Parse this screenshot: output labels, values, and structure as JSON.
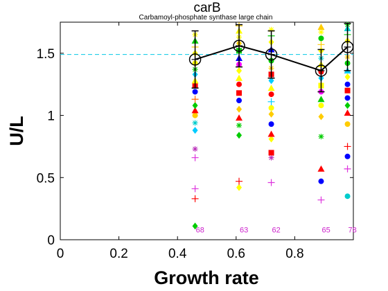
{
  "chart_data": {
    "type": "scatter",
    "title": "carB",
    "subtitle": "Carbamoyl-phosphate synthase large chain",
    "xlabel": "Growth rate",
    "ylabel": "U/L",
    "xlim": [
      0,
      1.0
    ],
    "ylim": [
      0,
      1.75
    ],
    "xticks": [
      "0",
      "0.2",
      "0.4",
      "0.6",
      "0.8"
    ],
    "yticks": [
      "0",
      "0.5",
      "1",
      "1.5"
    ],
    "reference_line": {
      "y": 1.49,
      "color": "#00c8e6",
      "style": "dashed"
    },
    "mean_series": {
      "x": [
        0.46,
        0.61,
        0.72,
        0.89,
        0.98
      ],
      "y": [
        1.45,
        1.56,
        1.49,
        1.36,
        1.55
      ],
      "err": [
        0.23,
        0.17,
        0.19,
        0.17,
        0.19
      ],
      "color": "#000000"
    },
    "sample_counts": [
      {
        "x": 0.46,
        "label": "68"
      },
      {
        "x": 0.61,
        "label": "63"
      },
      {
        "x": 0.72,
        "label": "62"
      },
      {
        "x": 0.89,
        "label": "65"
      },
      {
        "x": 0.98,
        "label": "78"
      }
    ],
    "samples": [
      {
        "x": 0.46,
        "points": [
          {
            "y": 0.11,
            "m": "diamond",
            "c": "#00cc00"
          },
          {
            "y": 0.33,
            "m": "plus",
            "c": "#ff0000"
          },
          {
            "y": 0.41,
            "m": "plus",
            "c": "#dd33dd"
          },
          {
            "y": 0.66,
            "m": "plus",
            "c": "#dd33dd"
          },
          {
            "y": 0.73,
            "m": "star",
            "c": "#bb33bb"
          },
          {
            "y": 0.88,
            "m": "diamond",
            "c": "#00ccff"
          },
          {
            "y": 0.94,
            "m": "star",
            "c": "#00cccc"
          },
          {
            "y": 1.0,
            "m": "circle",
            "c": "#ffcc00"
          },
          {
            "y": 1.04,
            "m": "triangle",
            "c": "#ff0000"
          },
          {
            "y": 1.08,
            "m": "diamond",
            "c": "#00cc00"
          },
          {
            "y": 1.13,
            "m": "plus",
            "c": "#ff6600"
          },
          {
            "y": 1.19,
            "m": "circle",
            "c": "#0000ff"
          },
          {
            "y": 1.24,
            "m": "square",
            "c": "#ff0000"
          },
          {
            "y": 1.28,
            "m": "triangle",
            "c": "#ffff00"
          },
          {
            "y": 1.33,
            "m": "diamond",
            "c": "#00ccff"
          },
          {
            "y": 1.37,
            "m": "star",
            "c": "#00cc00"
          },
          {
            "y": 1.42,
            "m": "circle",
            "c": "#ffff00"
          },
          {
            "y": 1.5,
            "m": "diamond",
            "c": "#ffff00"
          },
          {
            "y": 1.55,
            "m": "plus",
            "c": "#ffcc00"
          },
          {
            "y": 1.6,
            "m": "triangle",
            "c": "#00cc00"
          },
          {
            "y": 1.65,
            "m": "star",
            "c": "#ffff00"
          }
        ]
      },
      {
        "x": 0.61,
        "points": [
          {
            "y": 0.42,
            "m": "diamond",
            "c": "#ffff00"
          },
          {
            "y": 0.47,
            "m": "plus",
            "c": "#ff0000"
          },
          {
            "y": 0.84,
            "m": "diamond",
            "c": "#00cc00"
          },
          {
            "y": 0.92,
            "m": "star",
            "c": "#00cc00"
          },
          {
            "y": 0.98,
            "m": "triangle",
            "c": "#ff0000"
          },
          {
            "y": 1.05,
            "m": "diamond",
            "c": "#ffcc00"
          },
          {
            "y": 1.12,
            "m": "circle",
            "c": "#0000ff"
          },
          {
            "y": 1.18,
            "m": "square",
            "c": "#ff0000"
          },
          {
            "y": 1.25,
            "m": "circle",
            "c": "#ff0000"
          },
          {
            "y": 1.3,
            "m": "triangle",
            "c": "#ffff00"
          },
          {
            "y": 1.36,
            "m": "diamond",
            "c": "#ffff00"
          },
          {
            "y": 1.41,
            "m": "circle",
            "c": "#ff00ff"
          },
          {
            "y": 1.46,
            "m": "triangle",
            "c": "#0000ff"
          },
          {
            "y": 1.52,
            "m": "square",
            "c": "#00cc00"
          },
          {
            "y": 1.58,
            "m": "diamond",
            "c": "#ffcc00"
          },
          {
            "y": 1.63,
            "m": "star",
            "c": "#ffff00"
          },
          {
            "y": 1.68,
            "m": "triangle",
            "c": "#ffff00"
          },
          {
            "y": 1.72,
            "m": "plus",
            "c": "#ffcc00"
          }
        ]
      },
      {
        "x": 0.72,
        "points": [
          {
            "y": 0.46,
            "m": "plus",
            "c": "#dd33dd"
          },
          {
            "y": 0.66,
            "m": "star",
            "c": "#bb33bb"
          },
          {
            "y": 0.7,
            "m": "square",
            "c": "#ff0000"
          },
          {
            "y": 0.81,
            "m": "diamond",
            "c": "#ffff00"
          },
          {
            "y": 0.85,
            "m": "triangle",
            "c": "#ff0000"
          },
          {
            "y": 0.93,
            "m": "circle",
            "c": "#0000ff"
          },
          {
            "y": 1.01,
            "m": "diamond",
            "c": "#ffcc00"
          },
          {
            "y": 1.06,
            "m": "circle",
            "c": "#ffff00"
          },
          {
            "y": 1.11,
            "m": "plus",
            "c": "#00ccff"
          },
          {
            "y": 1.17,
            "m": "circle",
            "c": "#ff0000"
          },
          {
            "y": 1.22,
            "m": "triangle",
            "c": "#ffff00"
          },
          {
            "y": 1.28,
            "m": "diamond",
            "c": "#00ccff"
          },
          {
            "y": 1.33,
            "m": "square",
            "c": "#ff0000"
          },
          {
            "y": 1.38,
            "m": "star",
            "c": "#ffcc00"
          },
          {
            "y": 1.44,
            "m": "circle",
            "c": "#00cc00"
          },
          {
            "y": 1.53,
            "m": "triangle",
            "c": "#0000ff"
          },
          {
            "y": 1.59,
            "m": "diamond",
            "c": "#ffff00"
          },
          {
            "y": 1.64,
            "m": "plus",
            "c": "#00cc00"
          },
          {
            "y": 1.69,
            "m": "star",
            "c": "#ffff00"
          }
        ]
      },
      {
        "x": 0.89,
        "points": [
          {
            "y": 0.32,
            "m": "plus",
            "c": "#dd33dd"
          },
          {
            "y": 0.47,
            "m": "circle",
            "c": "#0000ff"
          },
          {
            "y": 0.57,
            "m": "triangle",
            "c": "#ff0000"
          },
          {
            "y": 0.83,
            "m": "star",
            "c": "#00cc00"
          },
          {
            "y": 0.99,
            "m": "diamond",
            "c": "#ffcc00"
          },
          {
            "y": 1.08,
            "m": "circle",
            "c": "#ffff00"
          },
          {
            "y": 1.13,
            "m": "triangle",
            "c": "#00cc00"
          },
          {
            "y": 1.19,
            "m": "circle",
            "c": "#ff00ff"
          },
          {
            "y": 1.24,
            "m": "square",
            "c": "#ffff00"
          },
          {
            "y": 1.3,
            "m": "diamond",
            "c": "#00ccff"
          },
          {
            "y": 1.35,
            "m": "circle",
            "c": "#ff0000"
          },
          {
            "y": 1.41,
            "m": "triangle",
            "c": "#ffff00"
          },
          {
            "y": 1.46,
            "m": "star",
            "c": "#00cccc"
          },
          {
            "y": 1.52,
            "m": "diamond",
            "c": "#ffff00"
          },
          {
            "y": 1.57,
            "m": "plus",
            "c": "#ffcc00"
          },
          {
            "y": 1.62,
            "m": "circle",
            "c": "#00cc00"
          },
          {
            "y": 1.67,
            "m": "star",
            "c": "#ffff00"
          },
          {
            "y": 1.71,
            "m": "triangle",
            "c": "#ffcc00"
          }
        ]
      },
      {
        "x": 0.98,
        "points": [
          {
            "y": 0.35,
            "m": "circle",
            "c": "#00cccc"
          },
          {
            "y": 0.57,
            "m": "plus",
            "c": "#dd33dd"
          },
          {
            "y": 0.67,
            "m": "circle",
            "c": "#0000ff"
          },
          {
            "y": 0.75,
            "m": "plus",
            "c": "#ff0000"
          },
          {
            "y": 0.93,
            "m": "circle",
            "c": "#ffcc00"
          },
          {
            "y": 1.02,
            "m": "triangle",
            "c": "#ff0000"
          },
          {
            "y": 1.08,
            "m": "diamond",
            "c": "#00cc00"
          },
          {
            "y": 1.14,
            "m": "circle",
            "c": "#0000ff"
          },
          {
            "y": 1.2,
            "m": "square",
            "c": "#ff0000"
          },
          {
            "y": 1.25,
            "m": "circle",
            "c": "#0000ff"
          },
          {
            "y": 1.31,
            "m": "diamond",
            "c": "#ffff00"
          },
          {
            "y": 1.36,
            "m": "triangle",
            "c": "#00ccff"
          },
          {
            "y": 1.42,
            "m": "circle",
            "c": "#00cc00"
          },
          {
            "y": 1.47,
            "m": "star",
            "c": "#ffcc00"
          },
          {
            "y": 1.6,
            "m": "diamond",
            "c": "#ffff00"
          },
          {
            "y": 1.65,
            "m": "plus",
            "c": "#00cc00"
          },
          {
            "y": 1.7,
            "m": "triangle",
            "c": "#00cccc"
          },
          {
            "y": 1.73,
            "m": "star",
            "c": "#00cc00"
          }
        ]
      }
    ]
  }
}
